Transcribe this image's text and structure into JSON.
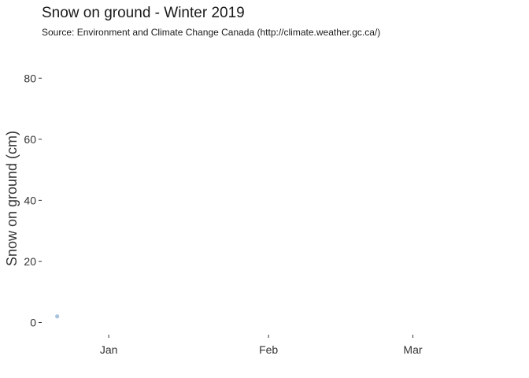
{
  "chart_data": {
    "type": "scatter",
    "title": "Snow on ground - Winter 2019",
    "subtitle": "Source: Environment and Climate Change Canada (http://climate.weather.gc.ca/)",
    "xlabel": "",
    "ylabel": "Snow on ground (cm)",
    "x_ticks": [
      {
        "label": "Jan",
        "date": "2019-01-01"
      },
      {
        "label": "Feb",
        "date": "2019-02-01"
      },
      {
        "label": "Mar",
        "date": "2019-03-01"
      }
    ],
    "xlim": [
      "2018-12-19",
      "2019-03-22"
    ],
    "y_ticks": [
      0,
      20,
      40,
      60,
      80
    ],
    "ylim": [
      -4,
      86
    ],
    "grid": false,
    "legend": "none",
    "point_color": "#a9c4dd",
    "tick_color": "#333333",
    "series": [
      {
        "points": [
          {
            "x": "2018-12-22",
            "y": 2
          }
        ]
      }
    ]
  }
}
